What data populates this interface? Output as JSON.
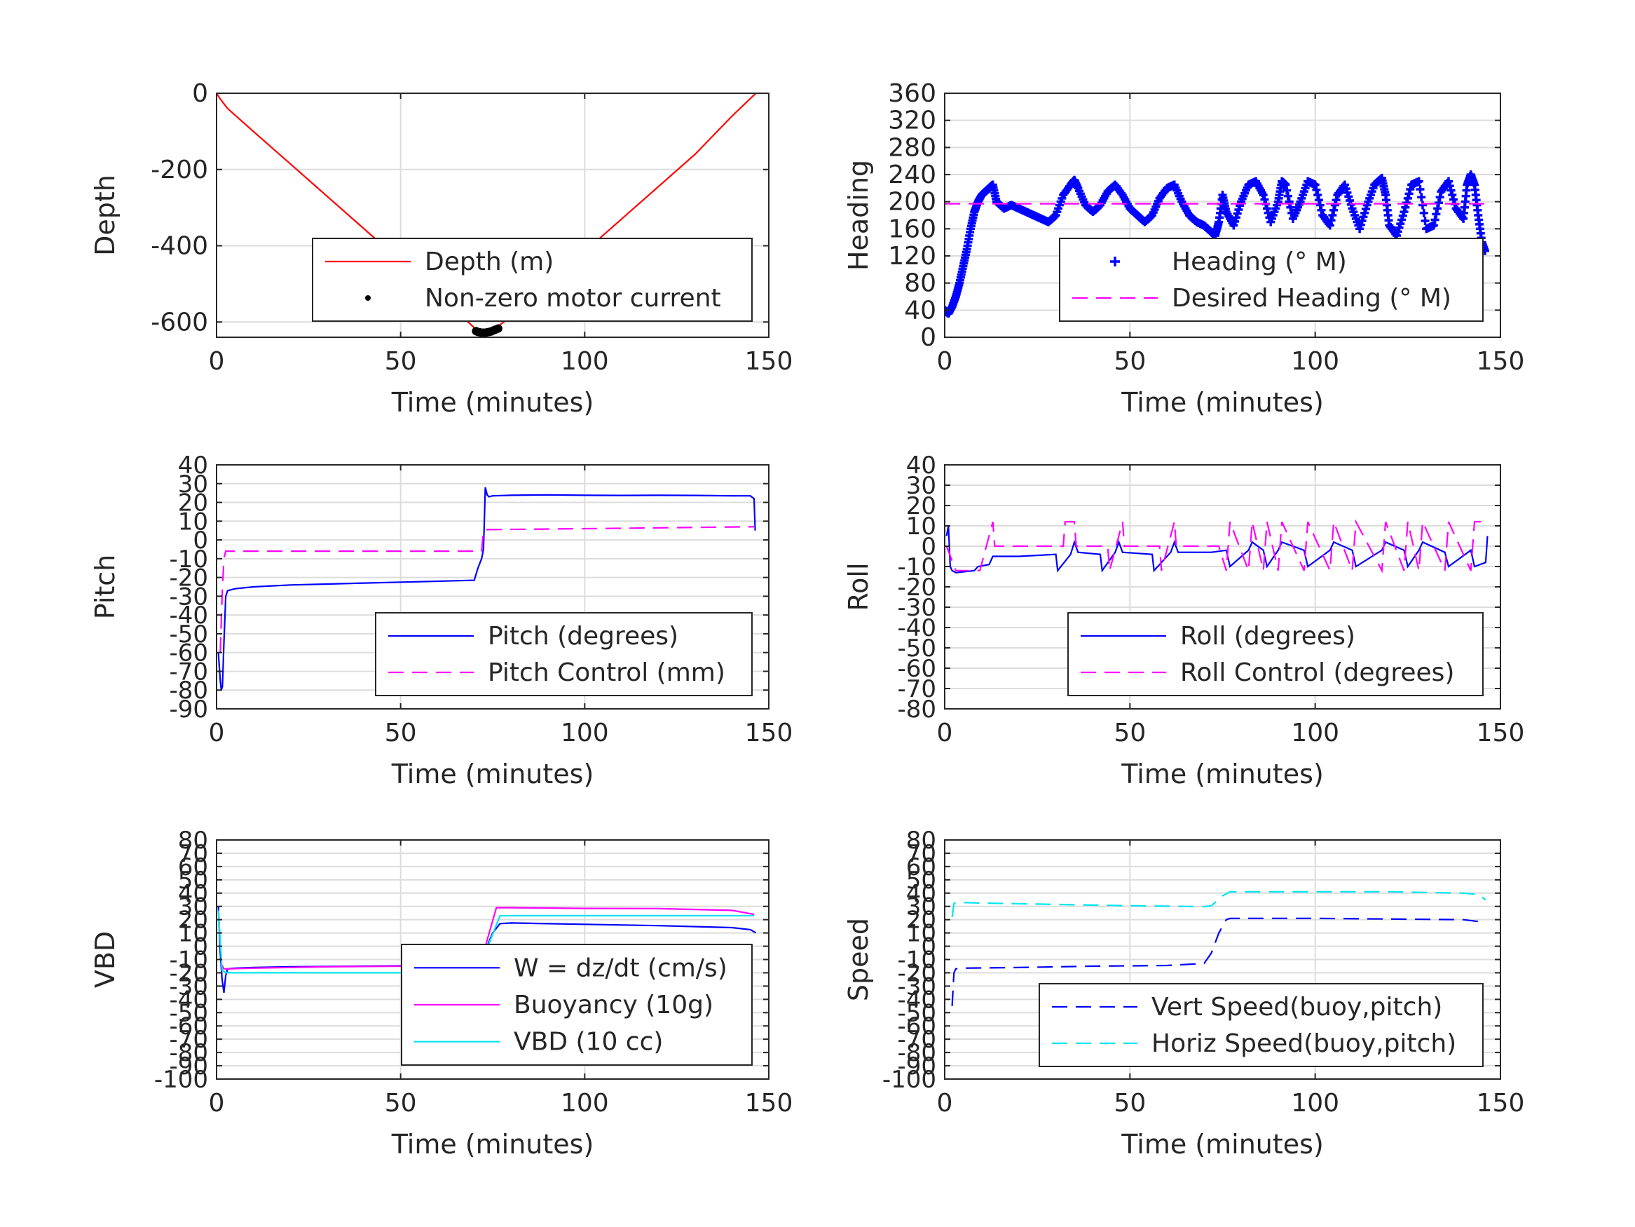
{
  "chart_data": [
    {
      "type": "line",
      "xlabel": "Time (minutes)",
      "ylabel": "Depth",
      "xlim": [
        0,
        150
      ],
      "ylim": [
        -640,
        0
      ],
      "xticks": [
        0,
        50,
        100,
        150
      ],
      "yticks": [
        0,
        -200,
        -400,
        -600
      ],
      "grid": true,
      "legend_placement": "bottom-right",
      "series": [
        {
          "name": "Depth (m)",
          "style": "line",
          "color": "#ff0000",
          "x": [
            0,
            1,
            3,
            10,
            20,
            30,
            40,
            50,
            60,
            70,
            72,
            73,
            75,
            80,
            90,
            100,
            110,
            120,
            130,
            140,
            146.5
          ],
          "y": [
            0,
            -15,
            -40,
            -100,
            -185,
            -270,
            -355,
            -440,
            -525,
            -615,
            -627,
            -628,
            -622,
            -585,
            -500,
            -415,
            -330,
            -245,
            -160,
            -60,
            0
          ]
        },
        {
          "name": "Non-zero motor current",
          "style": "dots",
          "color": "#000000",
          "x": [
            70.5,
            71,
            71.5,
            72,
            72.5,
            73,
            73.5,
            74,
            74.5,
            75,
            75.5,
            76,
            76.5
          ],
          "y": [
            -624,
            -626,
            -627,
            -628,
            -628,
            -628,
            -627,
            -626,
            -625,
            -623,
            -621,
            -619,
            -617
          ]
        }
      ]
    },
    {
      "type": "scatter",
      "xlabel": "Time (minutes)",
      "ylabel": "Heading",
      "xlim": [
        0,
        150
      ],
      "ylim": [
        0,
        360
      ],
      "xticks": [
        0,
        50,
        100,
        150
      ],
      "yticks": [
        0,
        40,
        80,
        120,
        160,
        200,
        240,
        280,
        320,
        360
      ],
      "grid": true,
      "legend_placement": "bottom-right",
      "series": [
        {
          "name": "Heading (° M)",
          "style": "plus",
          "color": "#0000ff",
          "x": [
            0,
            1,
            2,
            3,
            4,
            5,
            6,
            7,
            8,
            9,
            10,
            11,
            12,
            13,
            14,
            16,
            18,
            20,
            22,
            24,
            26,
            28,
            30,
            32,
            34,
            35,
            36,
            38,
            40,
            42,
            44,
            46,
            48,
            50,
            52,
            54,
            56,
            58,
            60,
            62,
            64,
            66,
            68,
            70,
            72,
            73,
            74,
            75,
            76,
            78,
            80,
            82,
            84,
            86,
            88,
            90,
            91,
            92,
            94,
            96,
            98,
            100,
            102,
            104,
            106,
            108,
            110,
            112,
            114,
            116,
            118,
            119,
            120,
            122,
            124,
            126,
            128,
            130,
            132,
            134,
            136,
            138,
            140,
            141,
            142,
            143,
            144,
            145,
            146
          ],
          "y": [
            40,
            35,
            45,
            60,
            80,
            105,
            130,
            160,
            185,
            200,
            210,
            215,
            220,
            225,
            200,
            190,
            195,
            190,
            185,
            180,
            175,
            170,
            180,
            210,
            225,
            232,
            220,
            195,
            185,
            195,
            215,
            225,
            210,
            190,
            180,
            170,
            180,
            205,
            220,
            225,
            200,
            180,
            170,
            165,
            155,
            150,
            170,
            210,
            185,
            165,
            200,
            225,
            230,
            210,
            170,
            200,
            230,
            225,
            175,
            200,
            230,
            225,
            180,
            165,
            210,
            225,
            190,
            160,
            195,
            225,
            235,
            210,
            165,
            150,
            185,
            225,
            230,
            160,
            165,
            215,
            230,
            190,
            175,
            225,
            240,
            225,
            180,
            140,
            125
          ]
        },
        {
          "name": "Desired Heading (° M)",
          "style": "dashed",
          "color": "#ff00ff",
          "x": [
            0,
            146
          ],
          "y": [
            197,
            197
          ]
        }
      ]
    },
    {
      "type": "line",
      "xlabel": "Time (minutes)",
      "ylabel": "Pitch",
      "xlim": [
        0,
        150
      ],
      "ylim": [
        -90,
        40
      ],
      "xticks": [
        0,
        50,
        100,
        150
      ],
      "yticks": [
        40,
        30,
        20,
        10,
        0,
        -10,
        -20,
        -30,
        -40,
        -50,
        -60,
        -70,
        -80,
        -90
      ],
      "grid": true,
      "legend_placement": "bottom-right",
      "series": [
        {
          "name": "Pitch (degrees)",
          "style": "line",
          "color": "#0000ff",
          "x": [
            0.5,
            1,
            1.3,
            1.6,
            2,
            2.5,
            3,
            5,
            10,
            20,
            30,
            40,
            50,
            60,
            70,
            71,
            72,
            72.5,
            73,
            73.5,
            74,
            75,
            80,
            90,
            100,
            110,
            120,
            130,
            140,
            145,
            146,
            146.3
          ],
          "y": [
            -60,
            -75,
            -80,
            -78,
            -55,
            -30,
            -27,
            -26,
            -25,
            -24,
            -23.5,
            -23,
            -22.5,
            -22,
            -21.5,
            -15,
            -10,
            -5,
            28,
            24,
            23,
            23.5,
            23.8,
            24,
            23.8,
            23.7,
            23.8,
            23.7,
            23.5,
            23.5,
            22,
            5
          ]
        },
        {
          "name": "Pitch Control (mm)",
          "style": "dashed",
          "color": "#ff00ff",
          "x": [
            1,
            1.5,
            2,
            2.5,
            72,
            72.5,
            73,
            100,
            146
          ],
          "y": [
            -60,
            -30,
            -10,
            -6,
            -6,
            5,
            5.5,
            6,
            7
          ]
        }
      ]
    },
    {
      "type": "line",
      "xlabel": "Time (minutes)",
      "ylabel": "Roll",
      "xlim": [
        0,
        150
      ],
      "ylim": [
        -80,
        40
      ],
      "xticks": [
        0,
        50,
        100,
        150
      ],
      "yticks": [
        40,
        30,
        20,
        10,
        0,
        -10,
        -20,
        -30,
        -40,
        -50,
        -60,
        -70,
        -80
      ],
      "grid": true,
      "legend_placement": "bottom-right",
      "series": [
        {
          "name": "Roll (degrees)",
          "style": "line",
          "color": "#0000ff",
          "x": [
            0.5,
            1,
            1.5,
            2,
            3,
            8,
            9,
            12,
            13,
            20,
            30,
            30.5,
            34,
            35,
            36,
            42,
            42.5,
            46,
            47,
            48,
            56,
            56.5,
            61,
            62,
            63,
            72,
            76,
            77,
            82,
            83,
            86,
            87,
            90,
            91,
            97,
            98,
            104,
            105,
            110,
            111,
            118,
            119,
            124,
            125,
            128,
            129,
            135,
            136,
            142,
            143,
            146,
            146.5
          ],
          "y": [
            5,
            10,
            -10,
            -12,
            -13,
            -12,
            -10,
            -9,
            -5,
            -5,
            -4,
            -12,
            -4,
            2,
            -3,
            -4,
            -12,
            -3,
            2,
            -3,
            -4,
            -12,
            -3,
            2,
            -3,
            -3,
            -2,
            -10,
            -2,
            2,
            -2,
            -10,
            -2,
            2,
            -2,
            -10,
            -2,
            2,
            -2,
            -10,
            -2,
            2,
            -2,
            -10,
            -2,
            2,
            -3,
            -10,
            -2,
            -10,
            -8,
            5
          ]
        },
        {
          "name": "Roll Control (degrees)",
          "style": "dashed",
          "color": "#ff00ff",
          "x": [
            0.5,
            3,
            9,
            9.5,
            13,
            13.5,
            15,
            32,
            32.5,
            35,
            35.5,
            38,
            44,
            44.5,
            48,
            48.5,
            58,
            58.5,
            62,
            62.5,
            74,
            76,
            77,
            82,
            83,
            86,
            87,
            90,
            91,
            97,
            98,
            104,
            105,
            110,
            111,
            118,
            119,
            124,
            125,
            128,
            129,
            135,
            136,
            142,
            143,
            146
          ],
          "y": [
            0,
            -12,
            -12,
            -12,
            12,
            0,
            0,
            0,
            12,
            12,
            0,
            0,
            0,
            -12,
            12,
            0,
            0,
            -12,
            12,
            0,
            0,
            -12,
            12,
            -12,
            12,
            -12,
            12,
            -12,
            12,
            -12,
            12,
            -12,
            12,
            -12,
            12,
            -12,
            12,
            -12,
            12,
            -12,
            12,
            -12,
            12,
            -12,
            12,
            12
          ]
        }
      ]
    },
    {
      "type": "line",
      "xlabel": "Time (minutes)",
      "ylabel": "VBD",
      "xlim": [
        0,
        150
      ],
      "ylim": [
        -100,
        80
      ],
      "xticks": [
        0,
        50,
        100,
        150
      ],
      "yticks": [
        80,
        70,
        60,
        50,
        40,
        30,
        20,
        10,
        0,
        -10,
        -20,
        -30,
        -40,
        -50,
        -60,
        -70,
        -80,
        -90,
        -100
      ],
      "ytick_labels": [
        "80",
        "70",
        "60",
        "50",
        "40",
        "30",
        "20",
        "10",
        "0",
        "-10",
        "-20",
        "-30",
        "-40",
        "-50",
        "-60",
        "-70",
        "-80",
        "-90",
        "-100"
      ],
      "grid": true,
      "legend_placement": "bottom-right",
      "series": [
        {
          "name": "W = dz/dt (cm/s)",
          "style": "line",
          "color": "#0000ff",
          "x": [
            0.5,
            1,
            1.5,
            2,
            2.5,
            3,
            5,
            10,
            20,
            40,
            60,
            70,
            72,
            75,
            77,
            80,
            100,
            120,
            140,
            145,
            146.5
          ],
          "y": [
            30,
            -5,
            -25,
            -35,
            -22,
            -17,
            -16.5,
            -16,
            -15.5,
            -15,
            -14.5,
            -14,
            -10,
            10,
            17,
            17.5,
            16.5,
            15.5,
            14,
            12.5,
            10
          ]
        },
        {
          "name": "Buoyancy (10g)",
          "style": "line",
          "color": "#ff00ff",
          "x": [
            1,
            2,
            3,
            10,
            30,
            50,
            70,
            72,
            76,
            80,
            100,
            120,
            140,
            146
          ],
          "y": [
            -12,
            -17,
            -17,
            -16.5,
            -15.5,
            -15,
            -14,
            -10,
            29,
            29,
            28.5,
            28.3,
            27,
            24
          ]
        },
        {
          "name": "VBD (10 cc)",
          "style": "line",
          "color": "#00e5ee",
          "x": [
            0.5,
            1.5,
            2.5,
            10,
            40,
            70,
            71,
            77,
            100,
            140,
            146
          ],
          "y": [
            27,
            -18,
            -20,
            -20,
            -20,
            -20,
            -19,
            23,
            23,
            23,
            23
          ]
        }
      ]
    },
    {
      "type": "line",
      "xlabel": "Time (minutes)",
      "ylabel": "Speed",
      "xlim": [
        0,
        150
      ],
      "ylim": [
        -100,
        80
      ],
      "xticks": [
        0,
        50,
        100,
        150
      ],
      "yticks": [
        80,
        70,
        60,
        50,
        40,
        30,
        20,
        10,
        0,
        -10,
        -20,
        -30,
        -40,
        -50,
        -60,
        -70,
        -80,
        -90,
        -100
      ],
      "ytick_labels": [
        "80",
        "70",
        "60",
        "50",
        "40",
        "30",
        "20",
        "10",
        "0",
        "-10",
        "-20",
        "-30",
        "-40",
        "-50",
        "-60",
        "-70",
        "-80",
        "-90",
        "-100"
      ],
      "grid": true,
      "legend_placement": "bottom-right",
      "series": [
        {
          "name": "Vert Speed(buoy,pitch)",
          "style": "dashed",
          "color": "#0000ff",
          "x": [
            2,
            2.5,
            3,
            5,
            20,
            40,
            60,
            70,
            72,
            74,
            76,
            77,
            100,
            140,
            146
          ],
          "y": [
            -45,
            -20,
            -17,
            -16.5,
            -16,
            -15,
            -14.5,
            -13,
            -5,
            10,
            20,
            21,
            21,
            20,
            18
          ]
        },
        {
          "name": "Horiz Speed(buoy,pitch)",
          "style": "dashed",
          "color": "#00e5ee",
          "x": [
            2,
            2.5,
            3,
            10,
            30,
            50,
            70,
            72,
            75,
            77,
            100,
            120,
            140,
            144,
            146
          ],
          "y": [
            22,
            32,
            33,
            32.5,
            31.5,
            30.5,
            29.8,
            30.5,
            38,
            41,
            41,
            41,
            40,
            39,
            35
          ]
        }
      ]
    }
  ]
}
